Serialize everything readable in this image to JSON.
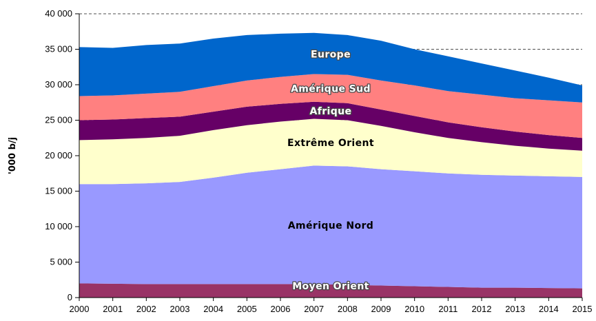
{
  "chart_data": {
    "type": "area",
    "stacked": true,
    "title": "",
    "xlabel": "",
    "ylabel": "'000 b/j",
    "ylim": [
      0,
      40000
    ],
    "ytick_interval": 5000,
    "ytick_labels": [
      "0",
      "5 000",
      "10 000",
      "15 000",
      "20 000",
      "25 000",
      "30 000",
      "35 000",
      "40 000"
    ],
    "grid": "dashed-horizontal",
    "x": [
      2000,
      2001,
      2002,
      2003,
      2004,
      2005,
      2006,
      2007,
      2008,
      2009,
      2010,
      2011,
      2012,
      2013,
      2014,
      2015
    ],
    "series": [
      {
        "name": "Moyen Orient",
        "color": "#993366",
        "label_color": "#ffffff",
        "values": [
          2000,
          1950,
          1900,
          1900,
          1900,
          1900,
          1900,
          1900,
          1800,
          1700,
          1600,
          1500,
          1400,
          1400,
          1350,
          1300
        ]
      },
      {
        "name": "Amérique Nord",
        "color": "#9999FF",
        "label_color": "#000000",
        "values": [
          14000,
          14050,
          14200,
          14400,
          15000,
          15700,
          16200,
          16700,
          16700,
          16400,
          16200,
          16000,
          15900,
          15800,
          15750,
          15700
        ]
      },
      {
        "name": "Extrême Orient",
        "color": "#FFFFCC",
        "label_color": "#000000",
        "values": [
          6200,
          6300,
          6400,
          6500,
          6700,
          6700,
          6700,
          6600,
          6500,
          6100,
          5500,
          5000,
          4600,
          4200,
          3900,
          3700
        ]
      },
      {
        "name": "Afrique",
        "color": "#660066",
        "label_color": "#ffffff",
        "values": [
          2800,
          2800,
          2800,
          2700,
          2600,
          2600,
          2500,
          2400,
          2400,
          2300,
          2300,
          2200,
          2100,
          2000,
          1900,
          1800
        ]
      },
      {
        "name": "Amérique Sud",
        "color": "#FF8080",
        "label_color": "#ffffff",
        "values": [
          3400,
          3400,
          3450,
          3500,
          3600,
          3700,
          3800,
          3900,
          4000,
          4100,
          4300,
          4400,
          4600,
          4700,
          4900,
          5000
        ]
      },
      {
        "name": "Europe",
        "color": "#0066CC",
        "label_color": "#ffffff",
        "values": [
          6900,
          6700,
          6850,
          6800,
          6700,
          6400,
          6100,
          5800,
          5600,
          5600,
          5100,
          4900,
          4400,
          3900,
          3200,
          2400
        ]
      }
    ]
  }
}
